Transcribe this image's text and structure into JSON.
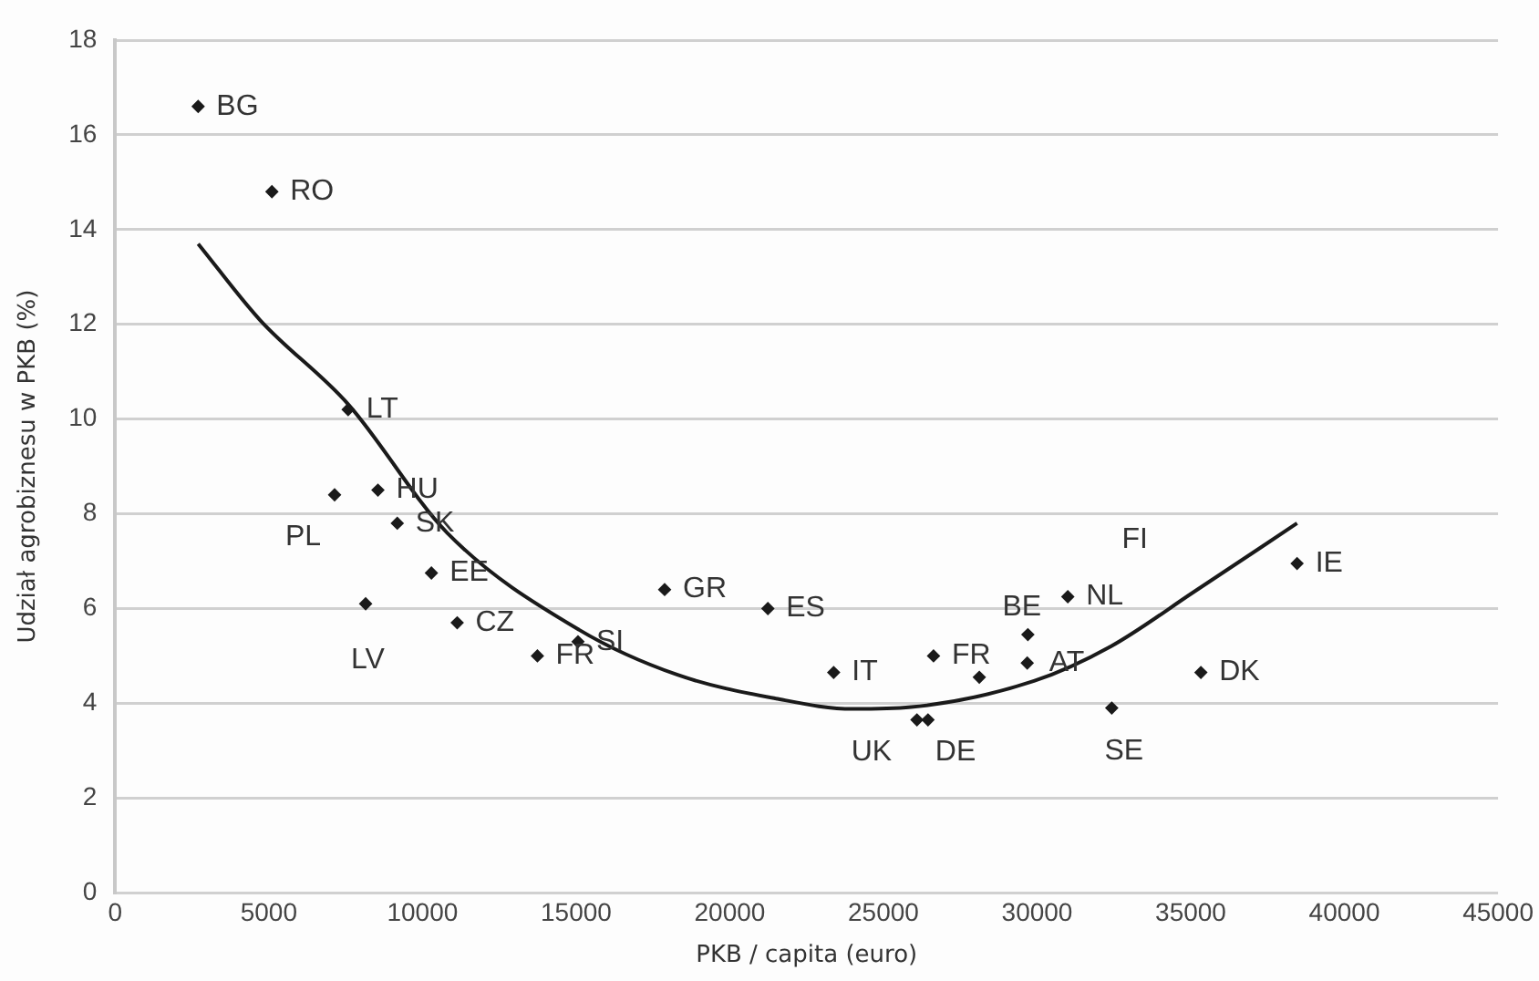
{
  "chart_data": {
    "type": "scatter",
    "xlabel": "PKB / capita (euro)",
    "ylabel": "Udział agrobiznesu w PKB (%)",
    "xlim": [
      0,
      45000
    ],
    "xticks": [
      0,
      5000,
      10000,
      15000,
      20000,
      25000,
      30000,
      35000,
      40000,
      45000
    ],
    "ylim": [
      0,
      18
    ],
    "yticks": [
      0,
      2,
      4,
      6,
      8,
      10,
      12,
      14,
      16,
      18
    ],
    "grid": "y",
    "legend": false,
    "series": [
      {
        "type": "scatter",
        "color": "#1a1a1a",
        "marker": "diamond",
        "x": [
          2700,
          5100,
          7580,
          7140,
          8550,
          9180,
          10290,
          8150,
          11130,
          13740,
          15060,
          17880,
          21240,
          23380,
          26090,
          26450,
          26630,
          28120,
          29700,
          29680,
          31000,
          32430,
          35330,
          38460
        ],
        "values": [
          16.6,
          14.8,
          10.2,
          8.4,
          8.5,
          7.8,
          6.75,
          6.1,
          5.7,
          5.0,
          5.3,
          6.4,
          6.0,
          4.65,
          3.65,
          3.65,
          5.0,
          4.55,
          5.45,
          4.85,
          6.25,
          3.9,
          4.65,
          6.95
        ],
        "value_labels": [
          "BG",
          "RO",
          "LT",
          "PL",
          "HU",
          "SK",
          "EE",
          "LV",
          "CZ",
          "FR",
          "SI",
          "GR",
          "ES",
          "IT",
          "UK",
          "DE",
          "FR",
          null,
          "BE",
          "AT",
          "NL",
          "SE",
          "DK",
          "IE"
        ]
      },
      {
        "type": "line",
        "color": "#1a1a1a",
        "marker": "none",
        "line_style": "solid",
        "x": [
          2700,
          4700,
          7600,
          10800,
          15100,
          18300,
          21500,
          24000,
          25900,
          29900,
          32400,
          35100,
          38460
        ],
        "values": [
          13.7,
          12.1,
          10.3,
          7.6,
          5.55,
          4.6,
          4.1,
          3.88,
          3.92,
          4.47,
          5.2,
          6.35,
          7.8
        ]
      }
    ],
    "annotations": [
      "FI"
    ]
  }
}
